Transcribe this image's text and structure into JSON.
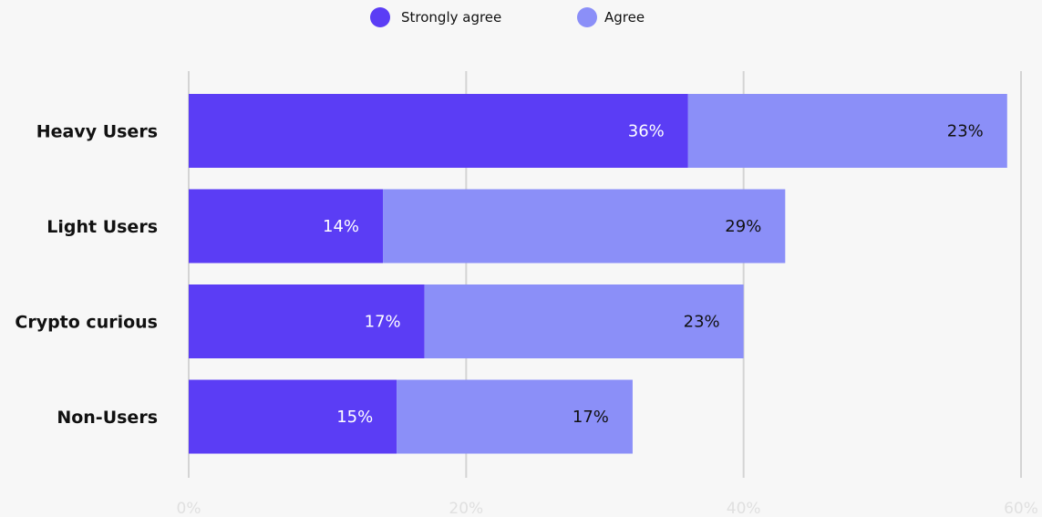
{
  "chart_data": {
    "type": "bar",
    "orientation": "horizontal",
    "stacked": true,
    "categories": [
      "Heavy Users",
      "Light Users",
      "Crypto curious",
      "Non-Users"
    ],
    "series": [
      {
        "name": "Strongly agree",
        "color": "#5b3df5",
        "label_color": "#ffffff",
        "values": [
          36,
          14,
          17,
          15
        ]
      },
      {
        "name": "Agree",
        "color": "#8b8ff8",
        "label_color": "#111111",
        "values": [
          23,
          29,
          23,
          17
        ]
      }
    ],
    "value_labels": [
      [
        "36%",
        "14%",
        "17%",
        "15%"
      ],
      [
        "23%",
        "29%",
        "23%",
        "17%"
      ]
    ],
    "xlim": [
      0,
      60
    ],
    "xticks": [
      0,
      20,
      40,
      60
    ],
    "xtick_labels": [
      "0%",
      "20%",
      "40%",
      "60%"
    ],
    "grid": true,
    "legend": "top-center",
    "background": "#f7f7f7",
    "gridline_color": "#d4d4d4"
  }
}
